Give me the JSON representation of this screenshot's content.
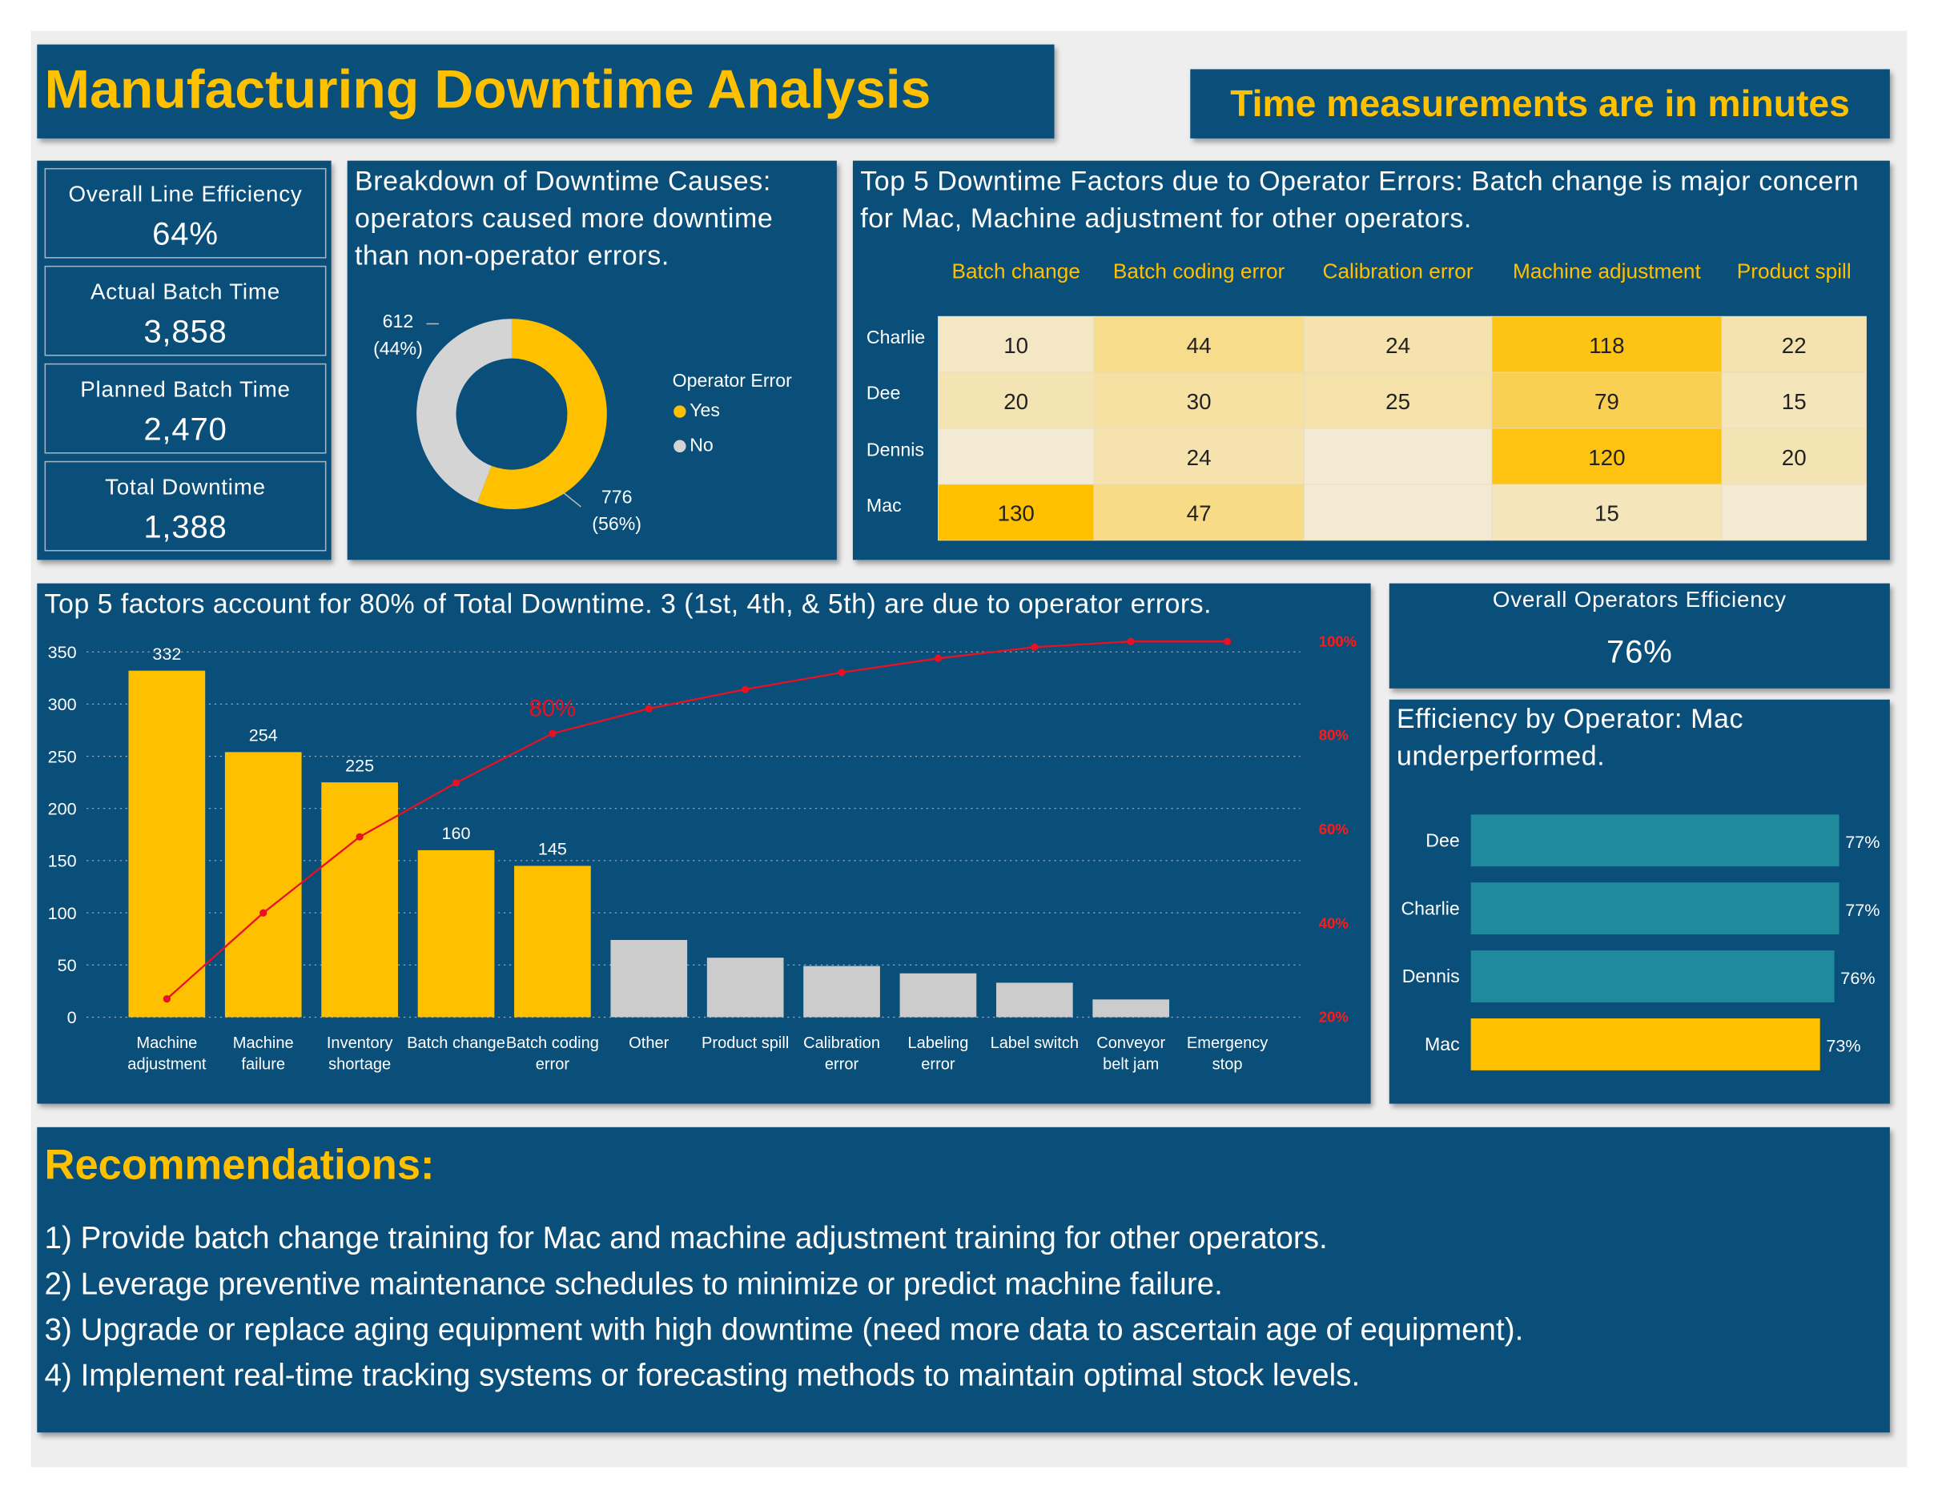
{
  "header": {
    "title": "Manufacturing Downtime Analysis",
    "note": "Time measurements are in minutes"
  },
  "kpis": [
    {
      "label": "Overall Line Efficiency",
      "value": "64%"
    },
    {
      "label": "Actual Batch Time",
      "value": "3,858"
    },
    {
      "label": "Planned Batch Time",
      "value": "2,470"
    },
    {
      "label": "Total Downtime",
      "value": "1,388"
    }
  ],
  "operator_efficiency": {
    "label": "Overall Operators Efficiency",
    "value": "76%"
  },
  "chart_data": [
    {
      "type": "pie",
      "title": "Breakdown of Downtime Causes: operators caused more downtime than non-operator errors.",
      "legend_title": "Operator Error",
      "categories": [
        "Yes",
        "No"
      ],
      "values": [
        776,
        612
      ],
      "value_labels": [
        "776 (56%)",
        "612 (44%)"
      ],
      "colors": [
        "#ffc000",
        "#d4d4d4"
      ]
    },
    {
      "type": "heatmap",
      "title": "Top 5 Downtime Factors due to Operator Errors: Batch change is major concern for Mac, Machine adjustment for other operators.",
      "categories": [
        "Batch change",
        "Batch coding error",
        "Calibration error",
        "Machine adjustment",
        "Product spill"
      ],
      "series": [
        {
          "name": "Charlie",
          "values": [
            10,
            44,
            24,
            118,
            22
          ]
        },
        {
          "name": "Dee",
          "values": [
            20,
            30,
            25,
            79,
            15
          ]
        },
        {
          "name": "Dennis",
          "values": [
            null,
            24,
            null,
            120,
            20
          ]
        },
        {
          "name": "Mac",
          "values": [
            130,
            47,
            null,
            15,
            null
          ]
        }
      ],
      "color_scale": [
        "#f3ead3",
        "#ffc000"
      ]
    },
    {
      "type": "pareto",
      "title": "Top 5 factors account for 80% of Total Downtime. 3 (1st, 4th, & 5th) are due to operator errors.",
      "categories": [
        "Machine adjustment",
        "Machine failure",
        "Inventory shortage",
        "Batch change",
        "Batch coding error",
        "Other",
        "Product spill",
        "Calibration error",
        "Labeling error",
        "Label switch",
        "Conveyor belt jam",
        "Emergency stop"
      ],
      "values": [
        332,
        254,
        225,
        160,
        145,
        74,
        57,
        49,
        42,
        33,
        17,
        0
      ],
      "colors": [
        "#ffc000",
        "#ffc000",
        "#ffc000",
        "#ffc000",
        "#ffc000",
        "#cccccc",
        "#cccccc",
        "#cccccc",
        "#cccccc",
        "#cccccc",
        "#cccccc",
        "#cccccc"
      ],
      "line": {
        "color": "#e81123",
        "axis": "y2",
        "values": [
          23.9,
          42.2,
          58.4,
          69.9,
          80.4,
          85.7,
          89.8,
          93.4,
          96.4,
          98.8,
          100,
          100
        ]
      },
      "annotation": "80%",
      "ylim": [
        0,
        360
      ],
      "yticks": [
        0,
        50,
        100,
        150,
        200,
        250,
        300,
        350
      ],
      "y2lim": [
        20,
        100
      ],
      "y2ticks": [
        {
          "value": 20,
          "label": "20%"
        },
        {
          "value": 40,
          "label": "40%"
        },
        {
          "value": 60,
          "label": "60%"
        },
        {
          "value": 80,
          "label": "80%"
        },
        {
          "value": 100,
          "label": "100%"
        }
      ],
      "grid": true
    },
    {
      "type": "hbar",
      "title": "Efficiency by Operator: Mac underperformed.",
      "categories": [
        "Dee",
        "Charlie",
        "Dennis",
        "Mac"
      ],
      "values": [
        77,
        77,
        76,
        73
      ],
      "value_labels": [
        "77%",
        "77%",
        "76%",
        "73%"
      ],
      "colors": [
        "#1f8a9b",
        "#1f8a9b",
        "#1f8a9b",
        "#ffc000"
      ],
      "xlim": [
        0,
        77
      ]
    }
  ],
  "recommendations": {
    "title": "Recommendations:",
    "items": [
      "1) Provide batch change training for Mac and machine adjustment training for other operators.",
      "2) Leverage preventive maintenance schedules to minimize or predict machine failure.",
      "3) Upgrade or replace aging equipment with high downtime (need more data to ascertain age of equipment).",
      "4) Implement real-time tracking systems or forecasting methods to maintain optimal stock levels."
    ]
  }
}
